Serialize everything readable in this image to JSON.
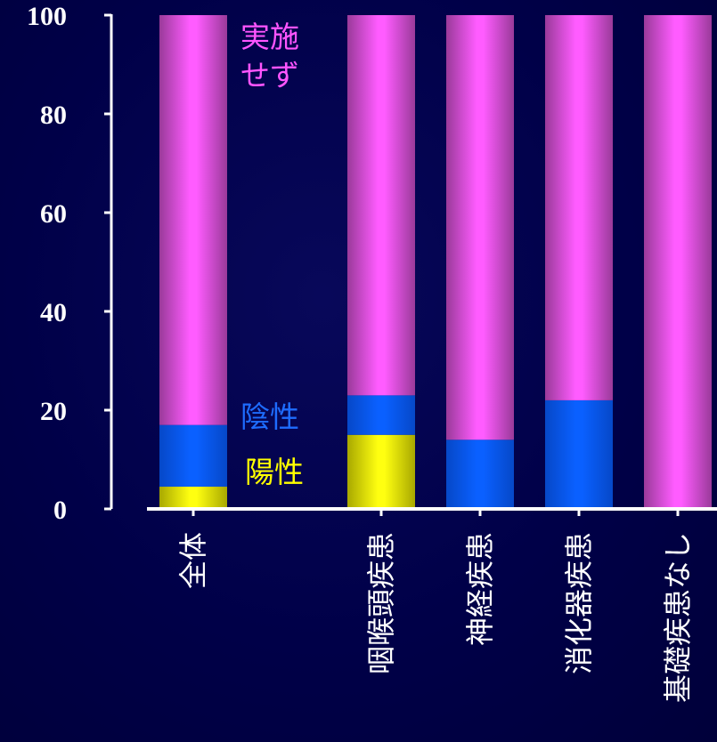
{
  "chart_data": {
    "type": "bar",
    "stacked": true,
    "categories": [
      "全体",
      "",
      "咽喉頭疾患",
      "神経疾患",
      "消化器疾患",
      "基礎疾患なし"
    ],
    "series": [
      {
        "name": "陽性",
        "values": [
          4.5,
          null,
          15,
          0,
          0,
          0
        ]
      },
      {
        "name": "陰性",
        "values": [
          12.5,
          null,
          8,
          14,
          22,
          0
        ]
      },
      {
        "name": "実施せず",
        "values": [
          83,
          null,
          77,
          86,
          78,
          100
        ]
      }
    ],
    "ylim": [
      0,
      100
    ],
    "yticks": [
      "0",
      "20",
      "40",
      "60",
      "80",
      "100"
    ],
    "annotations": [
      {
        "series": "実施せず",
        "lines": [
          "実施",
          "せず"
        ]
      },
      {
        "series": "陰性",
        "lines": [
          "陰性"
        ]
      },
      {
        "series": "陽性",
        "lines": [
          "陽性"
        ]
      }
    ],
    "colors": {
      "陽性": "#ffff00",
      "陰性": "#0a5cff",
      "実施せず": "#ff55ff",
      "background": "#000048",
      "axis": "#ffffff"
    }
  }
}
